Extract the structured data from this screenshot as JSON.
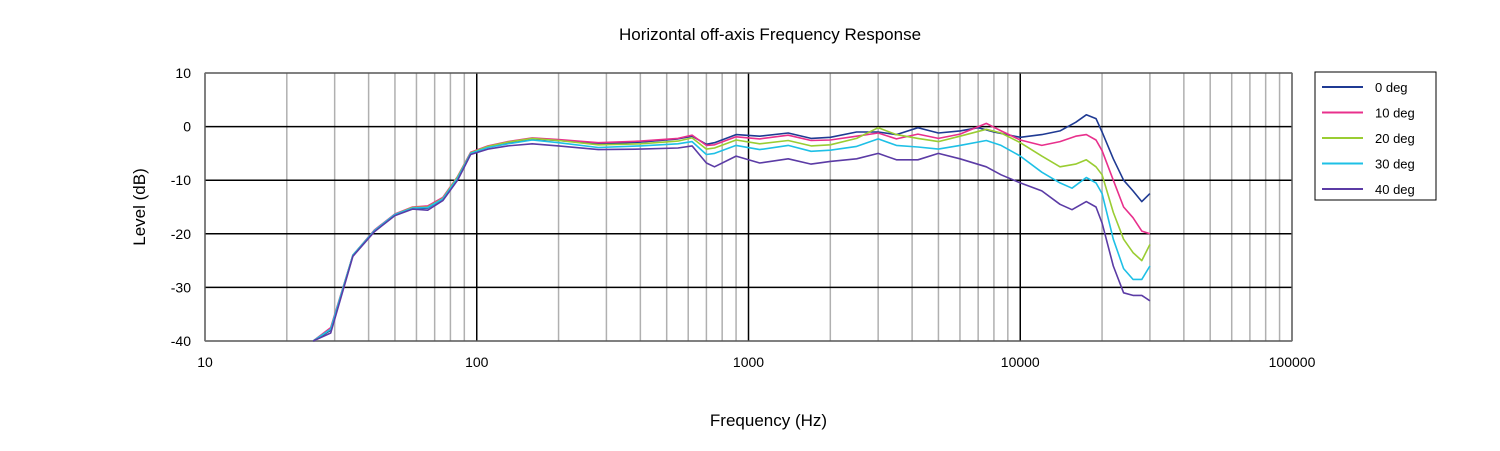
{
  "chart_data": {
    "type": "line",
    "title": "Horizontal off-axis Frequency Response",
    "xlabel": "Frequency (Hz)",
    "ylabel": "Level (dB)",
    "xscale": "log",
    "xlim": [
      10,
      100000
    ],
    "ylim": [
      -40,
      10
    ],
    "xticks": [
      10,
      100,
      1000,
      10000,
      100000
    ],
    "xtick_labels": [
      "10",
      "100",
      "1000",
      "10000",
      "100000"
    ],
    "yticks": [
      10,
      0,
      -10,
      -20,
      -30,
      -40
    ],
    "ytick_labels": [
      "10",
      "0",
      "-10",
      "-20",
      "-30",
      "-40"
    ],
    "grid": true,
    "legend_position": "right",
    "series": [
      {
        "name": "0 deg",
        "color": "#1f3a93",
        "points": [
          [
            25,
            -40
          ],
          [
            29,
            -38
          ],
          [
            35,
            -24
          ],
          [
            42,
            -19.5
          ],
          [
            50,
            -16.5
          ],
          [
            58,
            -15.3
          ],
          [
            66,
            -15.2
          ],
          [
            75,
            -13.5
          ],
          [
            85,
            -9.5
          ],
          [
            95,
            -5
          ],
          [
            110,
            -3.8
          ],
          [
            130,
            -3
          ],
          [
            160,
            -2.3
          ],
          [
            200,
            -2.6
          ],
          [
            280,
            -3.2
          ],
          [
            400,
            -2.9
          ],
          [
            550,
            -2.3
          ],
          [
            620,
            -1.8
          ],
          [
            700,
            -3.3
          ],
          [
            750,
            -3
          ],
          [
            900,
            -1.5
          ],
          [
            1100,
            -1.8
          ],
          [
            1400,
            -1.2
          ],
          [
            1700,
            -2.2
          ],
          [
            2000,
            -2
          ],
          [
            2500,
            -1
          ],
          [
            3000,
            -1
          ],
          [
            3500,
            -1.5
          ],
          [
            4200,
            -0.2
          ],
          [
            5000,
            -1.2
          ],
          [
            6000,
            -0.8
          ],
          [
            7000,
            -0.2
          ],
          [
            8000,
            -1
          ],
          [
            10000,
            -2
          ],
          [
            12000,
            -1.5
          ],
          [
            14000,
            -0.8
          ],
          [
            16000,
            0.8
          ],
          [
            17500,
            2.2
          ],
          [
            19000,
            1.5
          ],
          [
            20000,
            -1
          ],
          [
            22000,
            -6
          ],
          [
            24000,
            -10
          ],
          [
            26000,
            -12
          ],
          [
            28000,
            -14
          ],
          [
            30000,
            -12.5
          ]
        ]
      },
      {
        "name": "10 deg",
        "color": "#e8308c",
        "points": [
          [
            25,
            -40
          ],
          [
            29,
            -37.5
          ],
          [
            35,
            -24
          ],
          [
            42,
            -19.3
          ],
          [
            50,
            -16.3
          ],
          [
            58,
            -15
          ],
          [
            66,
            -14.8
          ],
          [
            75,
            -13.2
          ],
          [
            85,
            -9.3
          ],
          [
            95,
            -4.8
          ],
          [
            110,
            -3.6
          ],
          [
            130,
            -2.8
          ],
          [
            160,
            -2.1
          ],
          [
            200,
            -2.4
          ],
          [
            280,
            -3
          ],
          [
            400,
            -2.7
          ],
          [
            550,
            -2.2
          ],
          [
            620,
            -1.6
          ],
          [
            700,
            -3.5
          ],
          [
            750,
            -3.4
          ],
          [
            900,
            -1.9
          ],
          [
            1100,
            -2.3
          ],
          [
            1400,
            -1.6
          ],
          [
            1700,
            -2.6
          ],
          [
            2000,
            -2.5
          ],
          [
            2500,
            -1.8
          ],
          [
            3000,
            -1.2
          ],
          [
            3500,
            -2.3
          ],
          [
            4200,
            -1.4
          ],
          [
            5000,
            -2.2
          ],
          [
            6000,
            -1.4
          ],
          [
            7500,
            0.6
          ],
          [
            8500,
            -0.8
          ],
          [
            10000,
            -2.5
          ],
          [
            12000,
            -3.5
          ],
          [
            14000,
            -2.8
          ],
          [
            16000,
            -1.8
          ],
          [
            17500,
            -1.5
          ],
          [
            19000,
            -2.5
          ],
          [
            20000,
            -4.5
          ],
          [
            22000,
            -10
          ],
          [
            24000,
            -15
          ],
          [
            26000,
            -17
          ],
          [
            28000,
            -19.5
          ],
          [
            30000,
            -20
          ]
        ]
      },
      {
        "name": "20 deg",
        "color": "#9acd32",
        "points": [
          [
            25,
            -40
          ],
          [
            29,
            -37.8
          ],
          [
            35,
            -24
          ],
          [
            42,
            -19.4
          ],
          [
            50,
            -16.4
          ],
          [
            58,
            -15.1
          ],
          [
            66,
            -15
          ],
          [
            75,
            -13.4
          ],
          [
            85,
            -9.4
          ],
          [
            95,
            -4.9
          ],
          [
            110,
            -3.7
          ],
          [
            130,
            -2.9
          ],
          [
            160,
            -2.2
          ],
          [
            200,
            -2.6
          ],
          [
            280,
            -3.4
          ],
          [
            400,
            -3.2
          ],
          [
            550,
            -2.7
          ],
          [
            620,
            -2.1
          ],
          [
            700,
            -4.2
          ],
          [
            750,
            -4
          ],
          [
            900,
            -2.5
          ],
          [
            1100,
            -3.2
          ],
          [
            1400,
            -2.6
          ],
          [
            1700,
            -3.6
          ],
          [
            2000,
            -3.4
          ],
          [
            2500,
            -2.2
          ],
          [
            3000,
            -0.2
          ],
          [
            3500,
            -1.5
          ],
          [
            4200,
            -2.2
          ],
          [
            5000,
            -2.8
          ],
          [
            6000,
            -1.8
          ],
          [
            7500,
            -0.5
          ],
          [
            8500,
            -1.2
          ],
          [
            10000,
            -3
          ],
          [
            12000,
            -5.5
          ],
          [
            14000,
            -7.5
          ],
          [
            16000,
            -7
          ],
          [
            17500,
            -6.2
          ],
          [
            19000,
            -7.5
          ],
          [
            20000,
            -9
          ],
          [
            22000,
            -16
          ],
          [
            24000,
            -21
          ],
          [
            26000,
            -23.5
          ],
          [
            28000,
            -25
          ],
          [
            30000,
            -22
          ]
        ]
      },
      {
        "name": "30 deg",
        "color": "#1ec0e6",
        "points": [
          [
            25,
            -40
          ],
          [
            29,
            -37.8
          ],
          [
            35,
            -24
          ],
          [
            42,
            -19.4
          ],
          [
            50,
            -16.4
          ],
          [
            58,
            -15.2
          ],
          [
            66,
            -15.1
          ],
          [
            75,
            -13.5
          ],
          [
            85,
            -9.6
          ],
          [
            95,
            -5
          ],
          [
            110,
            -3.9
          ],
          [
            130,
            -3.2
          ],
          [
            160,
            -2.5
          ],
          [
            200,
            -3
          ],
          [
            280,
            -3.9
          ],
          [
            400,
            -3.6
          ],
          [
            550,
            -3.2
          ],
          [
            620,
            -2.8
          ],
          [
            700,
            -5.2
          ],
          [
            750,
            -5
          ],
          [
            900,
            -3.5
          ],
          [
            1100,
            -4.3
          ],
          [
            1400,
            -3.5
          ],
          [
            1700,
            -4.6
          ],
          [
            2000,
            -4.4
          ],
          [
            2500,
            -3.7
          ],
          [
            3000,
            -2.3
          ],
          [
            3500,
            -3.5
          ],
          [
            4200,
            -3.8
          ],
          [
            5000,
            -4.2
          ],
          [
            6000,
            -3.5
          ],
          [
            7500,
            -2.6
          ],
          [
            8500,
            -3.5
          ],
          [
            10000,
            -5.5
          ],
          [
            12000,
            -8.5
          ],
          [
            14000,
            -10.5
          ],
          [
            15500,
            -11.5
          ],
          [
            17500,
            -9.5
          ],
          [
            19000,
            -10.5
          ],
          [
            20000,
            -12.5
          ],
          [
            22000,
            -21
          ],
          [
            24000,
            -26.5
          ],
          [
            26000,
            -28.5
          ],
          [
            28000,
            -28.5
          ],
          [
            30000,
            -26
          ]
        ]
      },
      {
        "name": "40 deg",
        "color": "#5b3ba5",
        "points": [
          [
            25,
            -40
          ],
          [
            29,
            -38.5
          ],
          [
            35,
            -24.2
          ],
          [
            42,
            -19.6
          ],
          [
            50,
            -16.6
          ],
          [
            58,
            -15.4
          ],
          [
            66,
            -15.6
          ],
          [
            75,
            -13.8
          ],
          [
            85,
            -10
          ],
          [
            95,
            -5.2
          ],
          [
            110,
            -4.2
          ],
          [
            130,
            -3.6
          ],
          [
            160,
            -3.2
          ],
          [
            200,
            -3.6
          ],
          [
            280,
            -4.3
          ],
          [
            400,
            -4.2
          ],
          [
            550,
            -4
          ],
          [
            620,
            -3.6
          ],
          [
            700,
            -6.8
          ],
          [
            750,
            -7.5
          ],
          [
            900,
            -5.5
          ],
          [
            1100,
            -6.8
          ],
          [
            1400,
            -6
          ],
          [
            1700,
            -7
          ],
          [
            2000,
            -6.5
          ],
          [
            2500,
            -6
          ],
          [
            3000,
            -5
          ],
          [
            3500,
            -6.2
          ],
          [
            4200,
            -6.2
          ],
          [
            5000,
            -5
          ],
          [
            6000,
            -6
          ],
          [
            7500,
            -7.5
          ],
          [
            8500,
            -9
          ],
          [
            10000,
            -10.5
          ],
          [
            12000,
            -12
          ],
          [
            14000,
            -14.5
          ],
          [
            15500,
            -15.5
          ],
          [
            17500,
            -14
          ],
          [
            19000,
            -15
          ],
          [
            20000,
            -18
          ],
          [
            22000,
            -26
          ],
          [
            24000,
            -31
          ],
          [
            26000,
            -31.5
          ],
          [
            28000,
            -31.5
          ],
          [
            30000,
            -32.5
          ]
        ]
      }
    ]
  }
}
